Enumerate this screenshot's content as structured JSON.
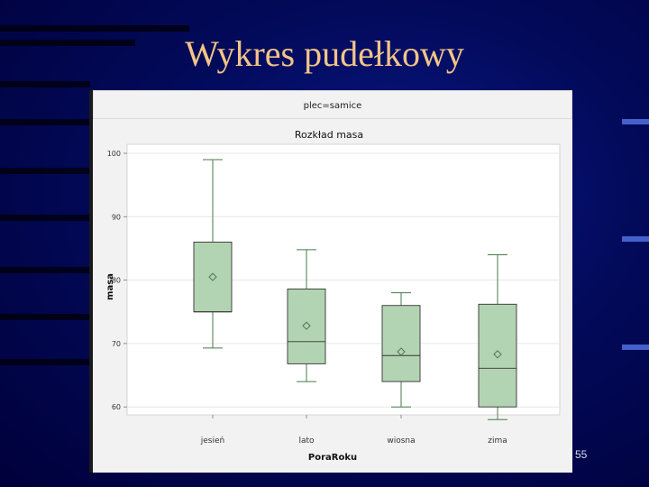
{
  "slide": {
    "title": "Wykres pudełkowy",
    "page_number": "55",
    "background_color": "#02086a",
    "title_color": "#f2c488"
  },
  "chart_data": {
    "type": "boxplot",
    "panel_label": "plec=samice",
    "title": "Rozkład masa",
    "xlabel": "PoraRoku",
    "ylabel": "masa",
    "ylim": [
      60,
      100
    ],
    "yticks": [
      60,
      70,
      80,
      90,
      100
    ],
    "grid": true,
    "box_color": "#b3d4b3",
    "line_color": "#4a7a4a",
    "categories": [
      "jesień",
      "lato",
      "wiosna",
      "zima"
    ],
    "boxes": [
      {
        "category": "jesień",
        "whisker_low": 69.3,
        "q1": 75,
        "median": 75,
        "q3": 86,
        "whisker_high": 99,
        "mean": 80.5
      },
      {
        "category": "lato",
        "whisker_low": 64,
        "q1": 66.8,
        "median": 70.3,
        "q3": 78.6,
        "whisker_high": 84.8,
        "mean": 72.8
      },
      {
        "category": "wiosna",
        "whisker_low": 60,
        "q1": 64,
        "median": 68.1,
        "q3": 76,
        "whisker_high": 78,
        "mean": 68.7
      },
      {
        "category": "zima",
        "whisker_low": 58,
        "q1": 60,
        "median": 66.1,
        "q3": 76.2,
        "whisker_high": 84,
        "mean": 68.3
      }
    ]
  }
}
